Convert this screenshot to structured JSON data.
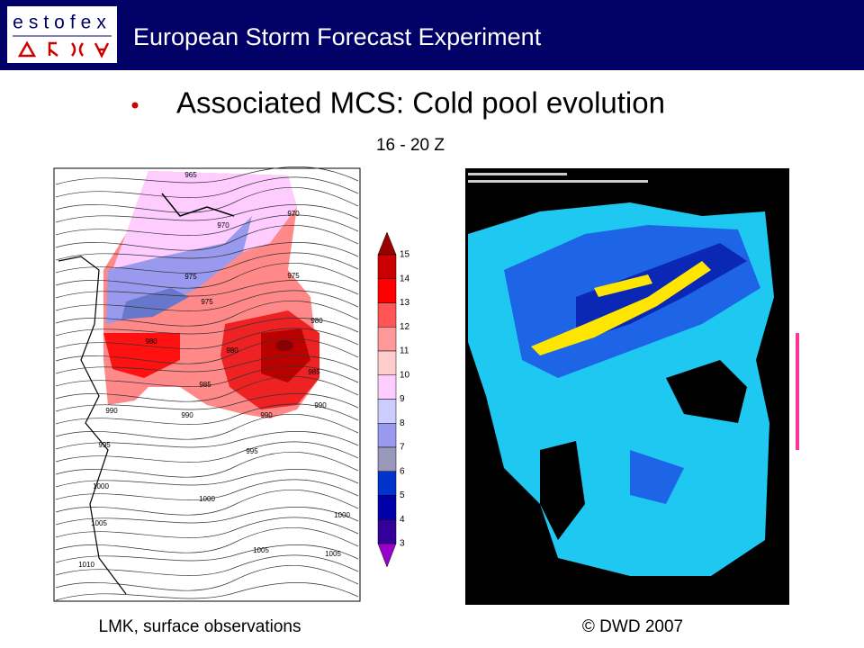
{
  "header": {
    "logo": "estofex",
    "title": "European Storm Forecast Experiment"
  },
  "slide": {
    "bullet": "Associated MCS: Cold pool evolution",
    "subtitle": "16 - 20 Z"
  },
  "left_map": {
    "caption": "LMK, surface observations",
    "contour_labels": [
      965,
      970,
      970,
      975,
      975,
      975,
      980,
      980,
      980,
      985,
      985,
      990,
      990,
      990,
      990,
      995,
      995,
      1000,
      1000,
      1000,
      1005,
      1005,
      1005,
      1010
    ]
  },
  "colorbar": {
    "levels": [
      15,
      14,
      13,
      12,
      11,
      10,
      9,
      8,
      7,
      6,
      5,
      4,
      3
    ],
    "colors": [
      "#990000",
      "#cc0000",
      "#ff0000",
      "#ff5555",
      "#ff9999",
      "#ffcccc",
      "#ffccff",
      "#ccccff",
      "#9999ee",
      "#9999bb",
      "#0033cc",
      "#0000aa",
      "#330099",
      "#9900cc"
    ]
  },
  "right_map": {
    "caption": "© DWD 2007"
  }
}
